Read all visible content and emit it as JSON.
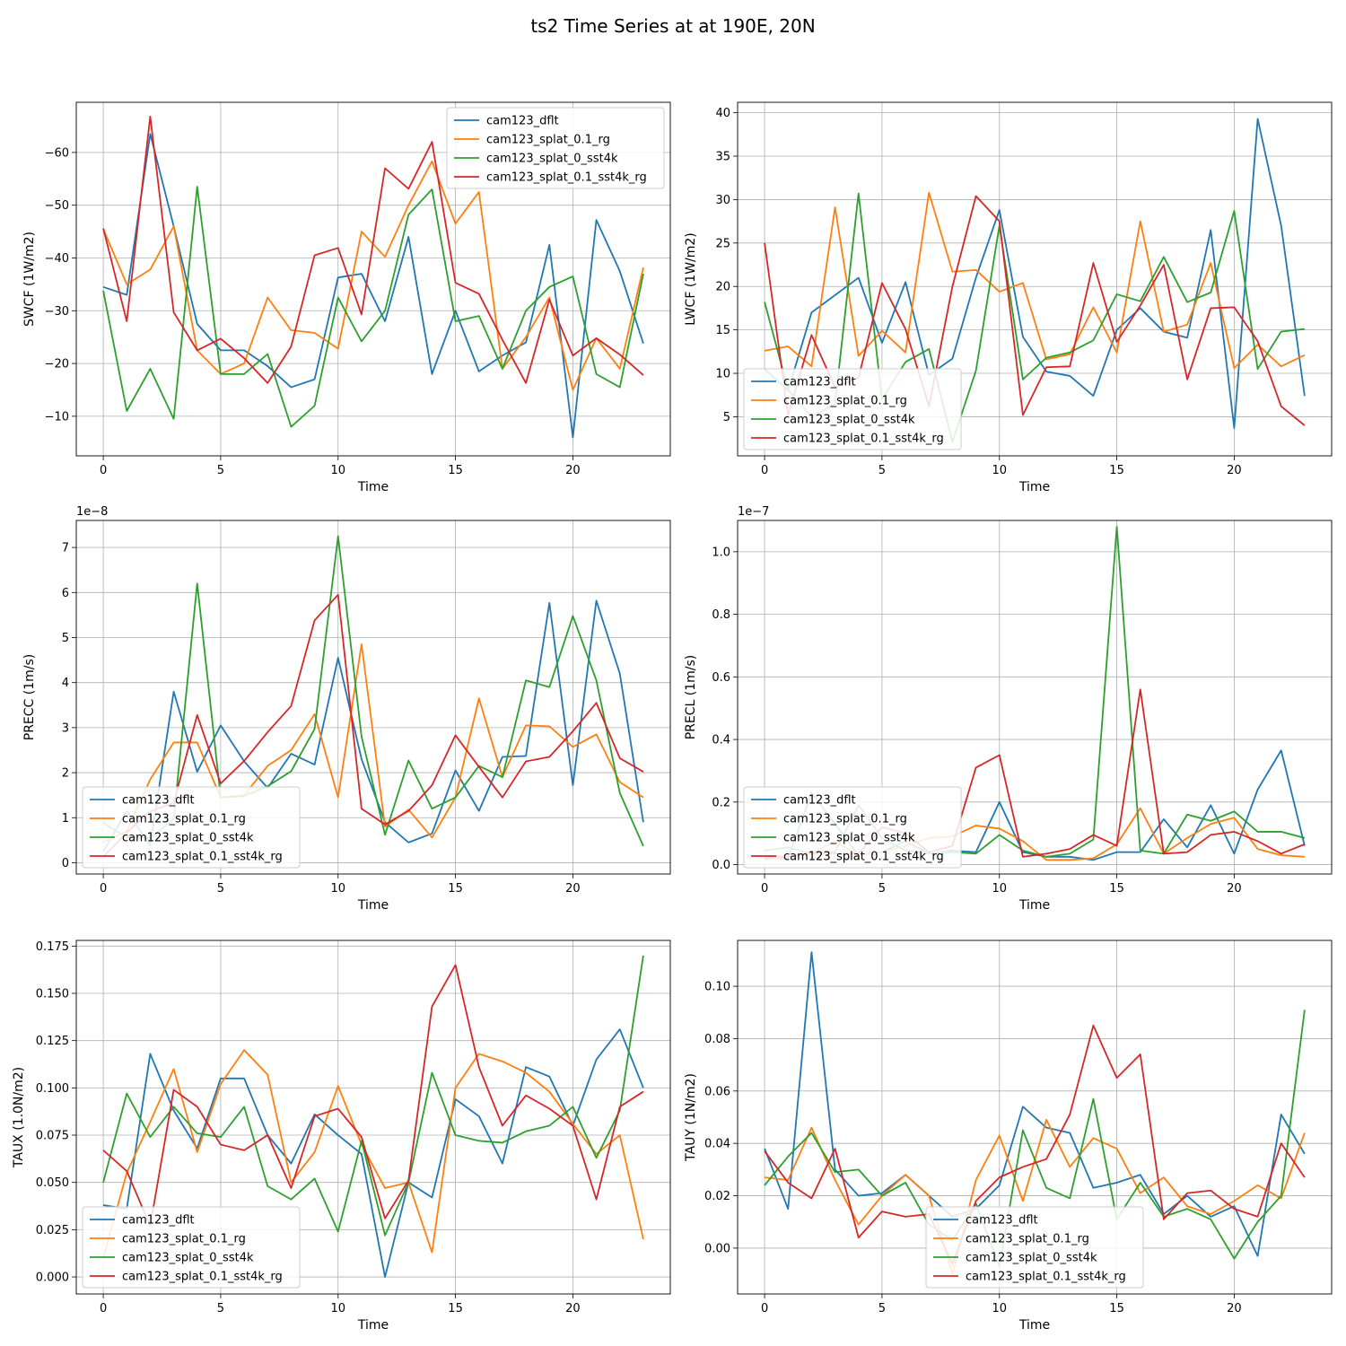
{
  "figure": {
    "title": "ts2 Time Series at at 190E, 20N",
    "xlabel": "Time"
  },
  "colors": {
    "cam123_dflt": "#1f77b4",
    "cam123_splat_0.1_rg": "#ff7f0e",
    "cam123_splat_0_sst4k": "#2ca02c",
    "cam123_splat_0.1_sst4k_rg": "#d62728"
  },
  "chart_data": [
    {
      "type": "line",
      "ylabel": "SWCF (1W/m2)",
      "xlabel": "Time",
      "xlim": [
        -1.15,
        24.15
      ],
      "ylim": [
        -69.5,
        -2.5
      ],
      "yaxis_inverted": true,
      "offset_text": "",
      "xticks": [
        0,
        5,
        10,
        15,
        20
      ],
      "yticks": [
        -60,
        -50,
        -40,
        -30,
        -20,
        -10
      ],
      "ytick_labels": [
        "−60",
        "−50",
        "−40",
        "−30",
        "−20",
        "−10"
      ],
      "legend_loc": "upper right",
      "x": [
        0,
        1,
        2,
        3,
        4,
        5,
        6,
        7,
        8,
        9,
        10,
        11,
        12,
        13,
        14,
        15,
        16,
        17,
        18,
        19,
        20,
        21,
        22,
        23
      ],
      "series": [
        {
          "name": "cam123_dflt",
          "values": [
            -34.5,
            -33,
            -63.5,
            -46,
            -27.5,
            -22.5,
            -22.5,
            -19.5,
            -15.5,
            -17,
            -36.3,
            -37,
            -28,
            -44,
            -18,
            -30,
            -18.5,
            -21.5,
            -24,
            -42.5,
            -6,
            -47.2,
            -37.5,
            -23.8
          ]
        },
        {
          "name": "cam123_splat_0.1_rg",
          "values": [
            -45.5,
            -35,
            -37.8,
            -46,
            -22.5,
            -18,
            -20,
            -32.5,
            -26.3,
            -25.8,
            -22.8,
            -45,
            -40.2,
            -50,
            -58.3,
            -46.5,
            -52.5,
            -19,
            -25,
            -32.5,
            -15,
            -24.8,
            -19,
            -38.2
          ]
        },
        {
          "name": "cam123_splat_0_sst4k",
          "values": [
            -33.8,
            -11,
            -19,
            -9.5,
            -53.5,
            -18,
            -18,
            -21.8,
            -8,
            -12,
            -32.5,
            -24.2,
            -30,
            -48.2,
            -53,
            -28,
            -29,
            -19,
            -30,
            -34.5,
            -36.5,
            -18,
            -15.5,
            -37
          ]
        },
        {
          "name": "cam123_splat_0.1_sst4k_rg",
          "values": [
            -45.6,
            -28,
            -66.8,
            -29.7,
            -22.5,
            -24.7,
            -21,
            -16.3,
            -23.2,
            -40.5,
            -41.9,
            -29.3,
            -57,
            -53.1,
            -62,
            -35.3,
            -33.2,
            -24.5,
            -16.3,
            -32.1,
            -21.5,
            -24.8,
            -21.7,
            -17.8
          ]
        }
      ]
    },
    {
      "type": "line",
      "ylabel": "LWCF (1W/m2)",
      "xlabel": "Time",
      "xlim": [
        -1.15,
        24.15
      ],
      "ylim": [
        41.2,
        0.5
      ],
      "yaxis_inverted": true,
      "offset_text": "",
      "xticks": [
        0,
        5,
        10,
        15,
        20
      ],
      "yticks": [
        5,
        10,
        15,
        20,
        25,
        30,
        35,
        40
      ],
      "ytick_labels": [
        "5",
        "10",
        "15",
        "20",
        "25",
        "30",
        "35",
        "40"
      ],
      "legend_loc": "lower left",
      "x": [
        0,
        1,
        2,
        3,
        4,
        5,
        6,
        7,
        8,
        9,
        10,
        11,
        12,
        13,
        14,
        15,
        16,
        17,
        18,
        19,
        20,
        21,
        22,
        23
      ],
      "series": [
        {
          "name": "cam123_dflt",
          "values": [
            10.5,
            8,
            17,
            19,
            21,
            13.5,
            20.5,
            9.8,
            11.7,
            21,
            28.8,
            14.2,
            10.2,
            9.7,
            7.4,
            15,
            17.5,
            14.8,
            14.1,
            26.5,
            3.7,
            39.3,
            27,
            7.4
          ]
        },
        {
          "name": "cam123_splat_0.1_rg",
          "values": [
            12.6,
            13.1,
            10.8,
            29.1,
            12,
            14.9,
            12.4,
            30.8,
            21.7,
            21.9,
            19.4,
            20.4,
            11.6,
            12.2,
            17.6,
            12.4,
            27.5,
            14.8,
            15.6,
            22.7,
            10.6,
            13.3,
            10.8,
            12.1
          ]
        },
        {
          "name": "cam123_splat_0_sst4k",
          "values": [
            18.2,
            8.1,
            5,
            6.5,
            30.7,
            7,
            11.3,
            12.8,
            2.1,
            10.3,
            27,
            9.3,
            11.8,
            12.4,
            13.8,
            19.1,
            18.3,
            23.4,
            18.2,
            19.3,
            28.7,
            10.5,
            14.8,
            15.1
          ]
        },
        {
          "name": "cam123_splat_0.1_sst4k_rg",
          "values": [
            25,
            5.2,
            14.4,
            8.4,
            9.5,
            20.4,
            15.1,
            6.2,
            20,
            30.4,
            27.5,
            5.2,
            10.7,
            10.8,
            22.7,
            13.6,
            17.8,
            22.5,
            9.3,
            17.5,
            17.6,
            13.7,
            6.2,
            4
          ]
        }
      ]
    },
    {
      "type": "line",
      "ylabel": "PRECC (1m/s)",
      "xlabel": "Time",
      "xlim": [
        -1.15,
        24.15
      ],
      "ylim": [
        7.6,
        -0.25
      ],
      "yaxis_inverted": true,
      "offset_text": "1e−8",
      "xticks": [
        0,
        5,
        10,
        15,
        20
      ],
      "yticks": [
        0,
        1,
        2,
        3,
        4,
        5,
        6,
        7
      ],
      "ytick_labels": [
        "0",
        "1",
        "2",
        "3",
        "4",
        "5",
        "6",
        "7"
      ],
      "legend_loc": "lower left",
      "x": [
        0,
        1,
        2,
        3,
        4,
        5,
        6,
        7,
        8,
        9,
        10,
        11,
        12,
        13,
        14,
        15,
        16,
        17,
        18,
        19,
        20,
        21,
        22,
        23
      ],
      "series": [
        {
          "name": "cam123_dflt",
          "values": [
            0.25,
            1.15,
            0.38,
            3.8,
            2.02,
            3.05,
            2.25,
            1.66,
            2.42,
            2.18,
            4.55,
            2.3,
            0.9,
            0.45,
            0.65,
            2.05,
            1.15,
            2.35,
            2.37,
            5.77,
            1.72,
            5.82,
            4.2,
            0.9
          ]
        },
        {
          "name": "cam123_splat_0.1_rg",
          "values": [
            0.45,
            0.7,
            1.85,
            2.67,
            2.67,
            1.45,
            1.5,
            2.15,
            2.5,
            3.3,
            1.45,
            4.85,
            0.8,
            1.18,
            0.56,
            1.45,
            3.65,
            1.9,
            3.05,
            3.03,
            2.57,
            2.85,
            1.79,
            1.45
          ]
        },
        {
          "name": "cam123_splat_0_sst4k",
          "values": [
            0.88,
            0.57,
            0.55,
            0.97,
            6.2,
            1.45,
            1.48,
            1.7,
            2.03,
            2.97,
            7.25,
            2.8,
            0.62,
            2.27,
            1.2,
            1.45,
            2.15,
            1.9,
            4.05,
            3.9,
            5.48,
            4.05,
            1.55,
            0.37
          ]
        },
        {
          "name": "cam123_splat_0.1_sst4k_rg",
          "values": [
            0.13,
            0.67,
            1.14,
            1.33,
            3.28,
            1.76,
            2.26,
            2.9,
            3.48,
            5.38,
            5.95,
            1.2,
            0.85,
            1.15,
            1.72,
            2.83,
            2.13,
            1.45,
            2.25,
            2.35,
            2.92,
            3.55,
            2.32,
            2.02
          ]
        }
      ]
    },
    {
      "type": "line",
      "ylabel": "PRECL (1m/s)",
      "xlabel": "Time",
      "xlim": [
        -1.15,
        24.15
      ],
      "ylim": [
        1.1,
        -0.03
      ],
      "yaxis_inverted": true,
      "offset_text": "1e−7",
      "xticks": [
        0,
        5,
        10,
        15,
        20
      ],
      "yticks": [
        0.0,
        0.2,
        0.4,
        0.6,
        0.8,
        1.0
      ],
      "ytick_labels": [
        "0.0",
        "0.2",
        "0.4",
        "0.6",
        "0.8",
        "1.0"
      ],
      "legend_loc": "lower left",
      "x": [
        0,
        1,
        2,
        3,
        4,
        5,
        6,
        7,
        8,
        9,
        10,
        11,
        12,
        13,
        14,
        15,
        16,
        17,
        18,
        19,
        20,
        21,
        22,
        23
      ],
      "series": [
        {
          "name": "cam123_dflt",
          "values": [
            0.02,
            0.02,
            0.23,
            0.13,
            0.03,
            0.04,
            0.075,
            0.035,
            0.045,
            0.04,
            0.2,
            0.04,
            0.025,
            0.025,
            0.015,
            0.04,
            0.04,
            0.145,
            0.055,
            0.19,
            0.035,
            0.24,
            0.365,
            0.06
          ]
        },
        {
          "name": "cam123_splat_0.1_rg",
          "values": [
            0.015,
            0.025,
            0.035,
            0.075,
            0.03,
            0.04,
            0.06,
            0.085,
            0.09,
            0.125,
            0.115,
            0.075,
            0.015,
            0.015,
            0.02,
            0.065,
            0.18,
            0.035,
            0.085,
            0.13,
            0.15,
            0.05,
            0.03,
            0.025
          ]
        },
        {
          "name": "cam123_splat_0_sst4k",
          "values": [
            0.045,
            0.055,
            0.035,
            0.04,
            0.19,
            0.085,
            0.045,
            0.035,
            0.04,
            0.035,
            0.095,
            0.045,
            0.025,
            0.035,
            0.08,
            1.08,
            0.045,
            0.035,
            0.16,
            0.14,
            0.17,
            0.105,
            0.105,
            0.085
          ]
        },
        {
          "name": "cam123_splat_0.1_sst4k_rg",
          "values": [
            0.025,
            0.025,
            0.04,
            0.035,
            0.035,
            0.12,
            0.1,
            0.04,
            0.06,
            0.31,
            0.35,
            0.025,
            0.035,
            0.05,
            0.095,
            0.06,
            0.56,
            0.035,
            0.04,
            0.095,
            0.105,
            0.075,
            0.035,
            0.065
          ]
        }
      ]
    },
    {
      "type": "line",
      "ylabel": "TAUX (1.0N/m2)",
      "xlabel": "Time",
      "xlim": [
        -1.15,
        24.15
      ],
      "ylim": [
        0.178,
        -0.009
      ],
      "yaxis_inverted": true,
      "offset_text": "",
      "xticks": [
        0,
        5,
        10,
        15,
        20
      ],
      "yticks": [
        0.0,
        0.025,
        0.05,
        0.075,
        0.1,
        0.125,
        0.15,
        0.175
      ],
      "ytick_labels": [
        "0.000",
        "0.025",
        "0.050",
        "0.075",
        "0.100",
        "0.125",
        "0.150",
        "0.175"
      ],
      "legend_loc": "lower left",
      "x": [
        0,
        1,
        2,
        3,
        4,
        5,
        6,
        7,
        8,
        9,
        10,
        11,
        12,
        13,
        14,
        15,
        16,
        17,
        18,
        19,
        20,
        21,
        22,
        23
      ],
      "series": [
        {
          "name": "cam123_dflt",
          "values": [
            0.038,
            0.036,
            0.118,
            0.088,
            0.068,
            0.105,
            0.105,
            0.075,
            0.06,
            0.086,
            0.075,
            0.065,
            0,
            0.05,
            0.042,
            0.094,
            0.085,
            0.06,
            0.111,
            0.106,
            0.08,
            0.115,
            0.131,
            0.1
          ]
        },
        {
          "name": "cam123_splat_0.1_rg",
          "values": [
            0.01,
            0.055,
            0.082,
            0.11,
            0.066,
            0.102,
            0.12,
            0.107,
            0.05,
            0.066,
            0.101,
            0.07,
            0.047,
            0.05,
            0.013,
            0.1,
            0.118,
            0.114,
            0.108,
            0.098,
            0.081,
            0.065,
            0.075,
            0.02
          ]
        },
        {
          "name": "cam123_splat_0_sst4k",
          "values": [
            0.05,
            0.097,
            0.074,
            0.09,
            0.076,
            0.074,
            0.09,
            0.048,
            0.041,
            0.052,
            0.024,
            0.072,
            0.022,
            0.05,
            0.108,
            0.075,
            0.072,
            0.071,
            0.077,
            0.08,
            0.09,
            0.063,
            0.088,
            0.17
          ]
        },
        {
          "name": "cam123_splat_0.1_sst4k_rg",
          "values": [
            0.067,
            0.056,
            0.027,
            0.099,
            0.09,
            0.07,
            0.067,
            0.075,
            0.047,
            0.085,
            0.089,
            0.074,
            0.031,
            0.051,
            0.143,
            0.165,
            0.111,
            0.08,
            0.096,
            0.089,
            0.08,
            0.041,
            0.09,
            0.098
          ]
        }
      ]
    },
    {
      "type": "line",
      "ylabel": "TAUY (1N/m2)",
      "xlabel": "Time",
      "xlim": [
        -1.15,
        24.15
      ],
      "ylim": [
        0.1175,
        -0.0175
      ],
      "yaxis_inverted": true,
      "offset_text": "",
      "xticks": [
        0,
        5,
        10,
        15,
        20
      ],
      "yticks": [
        0.0,
        0.02,
        0.04,
        0.06,
        0.08,
        0.1
      ],
      "ytick_labels": [
        "0.00",
        "0.02",
        "0.04",
        "0.06",
        "0.08",
        "0.10"
      ],
      "legend_loc": "lower center",
      "x": [
        0,
        1,
        2,
        3,
        4,
        5,
        6,
        7,
        8,
        9,
        10,
        11,
        12,
        13,
        14,
        15,
        16,
        17,
        18,
        19,
        20,
        21,
        22,
        23
      ],
      "series": [
        {
          "name": "cam123_dflt",
          "values": [
            0.038,
            0.015,
            0.113,
            0.03,
            0.02,
            0.021,
            0.028,
            0.02,
            0.012,
            0.015,
            0.024,
            0.054,
            0.046,
            0.044,
            0.023,
            0.025,
            0.028,
            0.013,
            0.02,
            0.012,
            0.016,
            -0.003,
            0.051,
            0.036
          ]
        },
        {
          "name": "cam123_splat_0.1_rg",
          "values": [
            0.027,
            0.026,
            0.046,
            0.026,
            0.009,
            0.02,
            0.028,
            0.02,
            -0.01,
            0.026,
            0.043,
            0.018,
            0.049,
            0.031,
            0.042,
            0.038,
            0.021,
            0.027,
            0.016,
            0.013,
            0.018,
            0.024,
            0.019,
            0.044
          ]
        },
        {
          "name": "cam123_splat_0_sst4k",
          "values": [
            0.024,
            0.035,
            0.044,
            0.029,
            0.03,
            0.02,
            0.025,
            0.009,
            0.003,
            0.017,
            -0.007,
            0.045,
            0.023,
            0.019,
            0.057,
            0.011,
            0.025,
            0.012,
            0.015,
            0.011,
            -0.004,
            0.01,
            0.02,
            0.091
          ]
        },
        {
          "name": "cam123_splat_0.1_sst4k_rg",
          "values": [
            0.037,
            0.025,
            0.019,
            0.038,
            0.004,
            0.014,
            0.012,
            0.013,
            -0.006,
            0.018,
            0.027,
            0.031,
            0.034,
            0.051,
            0.085,
            0.065,
            0.074,
            0.011,
            0.021,
            0.022,
            0.015,
            0.012,
            0.04,
            0.027
          ]
        }
      ]
    }
  ]
}
